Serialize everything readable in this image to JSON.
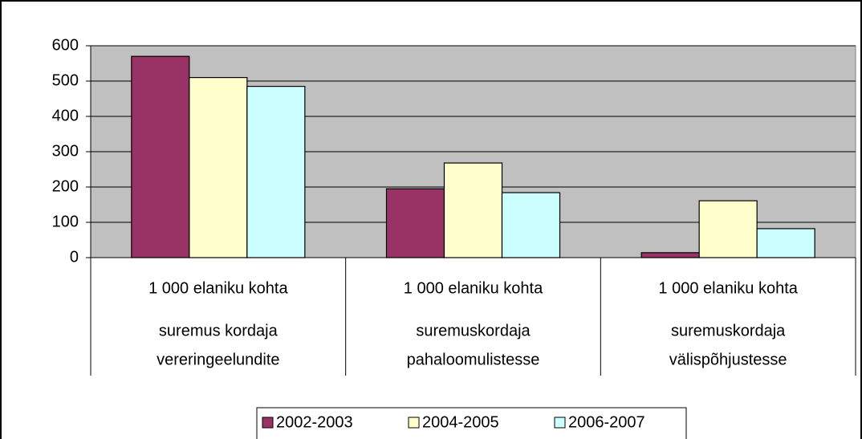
{
  "chart_data": {
    "type": "bar",
    "categories": [
      {
        "unit": "1 000 elaniku kohta",
        "name": [
          "suremus kordaja",
          "vereringeelundite"
        ]
      },
      {
        "unit": "1 000 elaniku kohta",
        "name": [
          "suremuskordaja",
          "pahaloomulistesse"
        ]
      },
      {
        "unit": "1 000 elaniku kohta",
        "name": [
          "suremuskordaja",
          "välispõhjustesse"
        ]
      }
    ],
    "series": [
      {
        "name": "2002-2003",
        "color": "#993366",
        "values": [
          570,
          195,
          14
        ]
      },
      {
        "name": "2004-2005",
        "color": "#ffffcc",
        "values": [
          510,
          268,
          161
        ]
      },
      {
        "name": "2006-2007",
        "color": "#ccffff",
        "values": [
          485,
          184,
          82
        ]
      }
    ],
    "ylim": [
      0,
      600
    ],
    "yticks": [
      0,
      100,
      200,
      300,
      400,
      500,
      600
    ],
    "grid": true,
    "plot_background": "#c0c0c0",
    "legend": "bottom"
  }
}
